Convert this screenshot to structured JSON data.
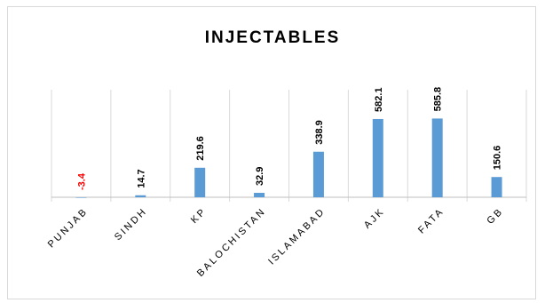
{
  "chart_data": {
    "type": "bar",
    "title": "INJECTABLES",
    "categories": [
      "PUNJAB",
      "SINDH",
      "KP",
      "BALOCHISTAN",
      "ISLAMABAD",
      "AJK",
      "FATA",
      "GB"
    ],
    "values": [
      -3.4,
      14.7,
      219.6,
      32.9,
      338.9,
      582.1,
      585.8,
      150.6
    ],
    "data_labels": [
      "-3.4",
      "14.7",
      "219.6",
      "32.9",
      "338.9",
      "582.1",
      "585.8",
      "150.6"
    ],
    "xlabel": "",
    "ylabel": "",
    "grid": "vertical category separators",
    "legend": "none",
    "colors": {
      "bar": "#5b9bd5",
      "negative_label": "#ff0000",
      "label": "#000000",
      "grid": "#d9d9d9",
      "axis": "#bfbfbf"
    }
  }
}
